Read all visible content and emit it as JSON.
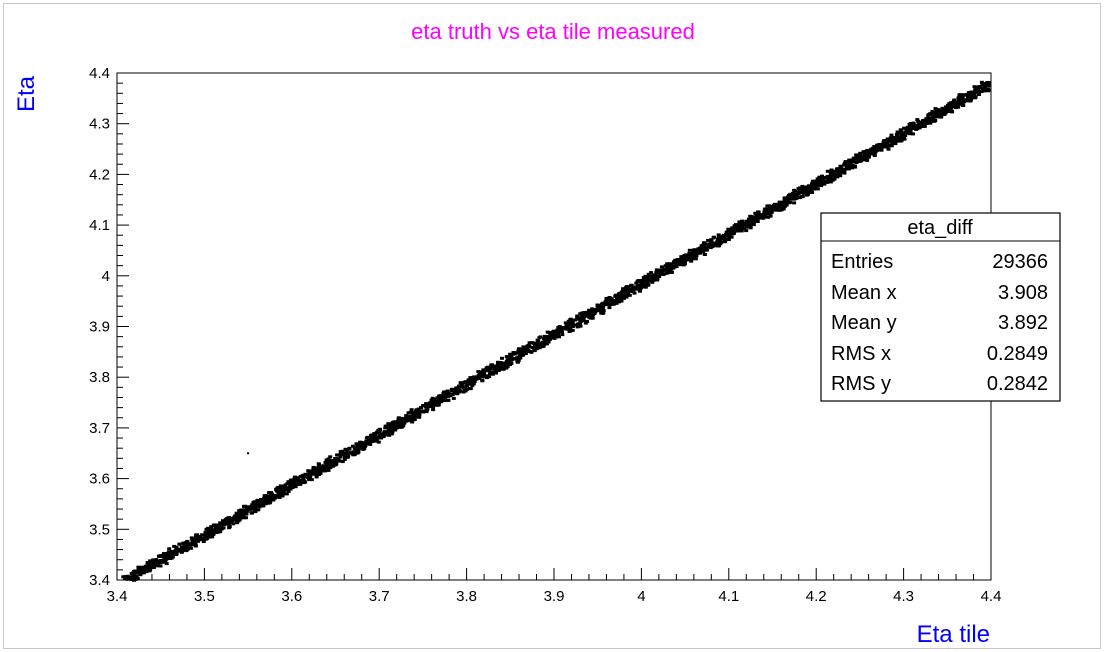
{
  "colors": {
    "title": "#ff00ff",
    "axis_title": "#0000ff",
    "frame": "#000000",
    "points": "#000000",
    "background": "#ffffff"
  },
  "chart_data": {
    "type": "scatter",
    "title": "eta truth vs eta tile measured",
    "xlabel": "Eta tile",
    "ylabel": "Eta",
    "xlim": [
      3.4,
      4.4
    ],
    "ylim": [
      3.4,
      4.4
    ],
    "x_ticks": [
      "3.4",
      "3.5",
      "3.6",
      "3.7",
      "3.8",
      "3.9",
      "4",
      "4.1",
      "4.2",
      "4.3",
      "4.4"
    ],
    "y_ticks": [
      "3.4",
      "3.5",
      "3.6",
      "3.7",
      "3.8",
      "3.9",
      "4",
      "4.1",
      "4.2",
      "4.3",
      "4.4"
    ],
    "grid": false,
    "legend": "none",
    "trend": {
      "x_start": 3.41,
      "y_start": 3.4,
      "x_end": 4.4,
      "y_end": 4.38,
      "band_half_width": 0.008
    },
    "outliers": [
      {
        "x": 3.55,
        "y": 3.65
      }
    ]
  },
  "stats_box": {
    "title": "eta_diff",
    "placement": "right",
    "rows": [
      {
        "label": "Entries",
        "value": "29366"
      },
      {
        "label": "Mean x",
        "value": "3.908"
      },
      {
        "label": "Mean y",
        "value": "3.892"
      },
      {
        "label": "RMS x",
        "value": "0.2849"
      },
      {
        "label": "RMS y",
        "value": "0.2842"
      }
    ]
  }
}
